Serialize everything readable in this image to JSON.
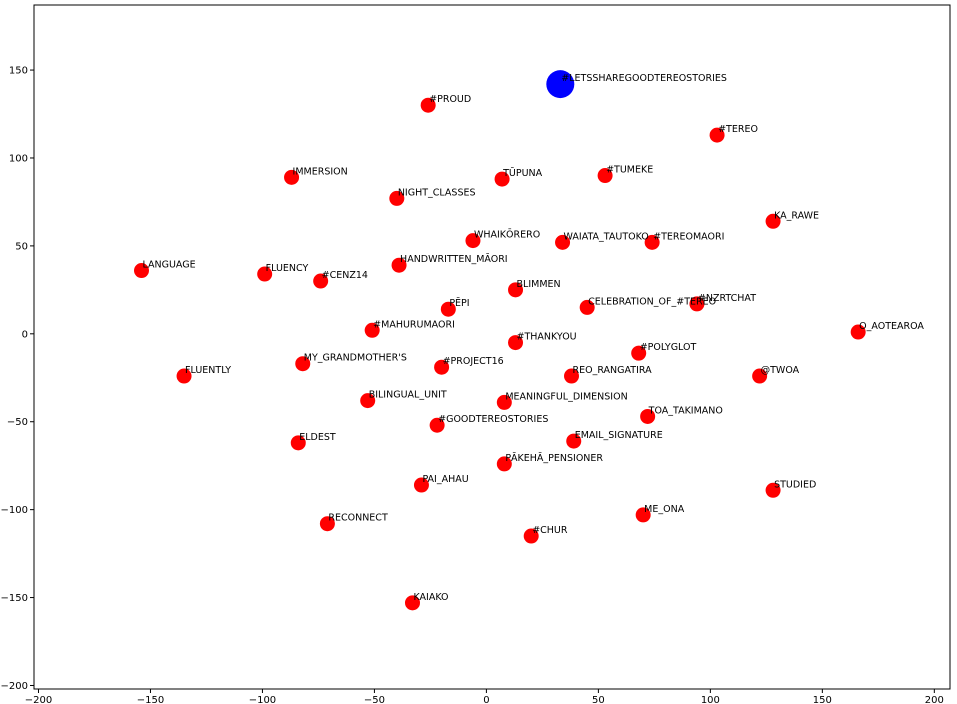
{
  "chart_data": {
    "type": "scatter",
    "title": "",
    "xlabel": "",
    "ylabel": "",
    "xlim": [
      -202,
      207
    ],
    "ylim": [
      -202,
      187
    ],
    "xticks": [
      -200,
      -150,
      -100,
      -50,
      0,
      50,
      100,
      150,
      200
    ],
    "yticks": [
      -200,
      -150,
      -100,
      -50,
      0,
      50,
      100,
      150
    ],
    "xtick_labels": [
      "−200",
      "−150",
      "−100",
      "−50",
      "0",
      "50",
      "100",
      "150",
      "200"
    ],
    "ytick_labels": [
      "−200",
      "−150",
      "−100",
      "−50",
      "0",
      "50",
      "100",
      "150"
    ],
    "grid": false,
    "colors": {
      "point": "#ff0000",
      "highlight": "#0000ff"
    },
    "series": [
      {
        "points": [
          {
            "label": "#PROUD",
            "x": -26,
            "y": 130
          },
          {
            "label": "#TEREO",
            "x": 103,
            "y": 113
          },
          {
            "label": "IMMERSION",
            "x": -87,
            "y": 89
          },
          {
            "label": "TŪPUNA",
            "x": 7,
            "y": 88
          },
          {
            "label": "#TUMEKE",
            "x": 53,
            "y": 90
          },
          {
            "label": "NIGHT_CLASSES",
            "x": -40,
            "y": 77
          },
          {
            "label": "KA_RAWE",
            "x": 128,
            "y": 64
          },
          {
            "label": "WHAIKŌRERO",
            "x": -6,
            "y": 53
          },
          {
            "label": "WAIATA_TAUTOKO",
            "x": 34,
            "y": 52
          },
          {
            "label": "#TEREOMAORI",
            "x": 74,
            "y": 52
          },
          {
            "label": "LANGUAGE",
            "x": -154,
            "y": 36
          },
          {
            "label": "FLUENCY",
            "x": -99,
            "y": 34
          },
          {
            "label": "#CENZ14",
            "x": -74,
            "y": 30
          },
          {
            "label": "HANDWRITTEN_MĀORI",
            "x": -39,
            "y": 39
          },
          {
            "label": "BLIMMEN",
            "x": 13,
            "y": 25
          },
          {
            "label": "PĒPI",
            "x": -17,
            "y": 14
          },
          {
            "label": "CELEBRATION_OF_#TEREO",
            "x": 45,
            "y": 15
          },
          {
            "label": "#NZRTCHAT",
            "x": 94,
            "y": 17
          },
          {
            "label": "#MAHURUMAORI",
            "x": -51,
            "y": 2
          },
          {
            "label": "O_AOTEAROA",
            "x": 166,
            "y": 1
          },
          {
            "label": "#THANKYOU",
            "x": 13,
            "y": -5
          },
          {
            "label": "#POLYGLOT",
            "x": 68,
            "y": -11
          },
          {
            "label": "FLUENTLY",
            "x": -135,
            "y": -24
          },
          {
            "label": "MY_GRANDMOTHER'S",
            "x": -82,
            "y": -17
          },
          {
            "label": "#PROJECT16",
            "x": -20,
            "y": -19
          },
          {
            "label": "REO_RANGATIRA",
            "x": 38,
            "y": -24
          },
          {
            "label": "@TWOA",
            "x": 122,
            "y": -24
          },
          {
            "label": "BILINGUAL_UNIT",
            "x": -53,
            "y": -38
          },
          {
            "label": "MEANINGFUL_DIMENSION",
            "x": 8,
            "y": -39
          },
          {
            "label": "TOA_TAKIMANO",
            "x": 72,
            "y": -47
          },
          {
            "label": "#GOODTEREOSTORIES",
            "x": -22,
            "y": -52
          },
          {
            "label": "ELDEST",
            "x": -84,
            "y": -62
          },
          {
            "label": "EMAIL_SIGNATURE",
            "x": 39,
            "y": -61
          },
          {
            "label": "PĀKEHĀ_PENSIONER",
            "x": 8,
            "y": -74
          },
          {
            "label": "PAI_AHAU",
            "x": -29,
            "y": -86
          },
          {
            "label": "STUDIED",
            "x": 128,
            "y": -89
          },
          {
            "label": "RECONNECT",
            "x": -71,
            "y": -108
          },
          {
            "label": "ME_ONA",
            "x": 70,
            "y": -103
          },
          {
            "label": "#CHUR",
            "x": 20,
            "y": -115
          },
          {
            "label": "KAIAKO",
            "x": -33,
            "y": -153
          }
        ]
      },
      {
        "highlight": true,
        "points": [
          {
            "label": "#LETSSHAREGOODTEREOSTORIES",
            "x": 33,
            "y": 142
          }
        ]
      }
    ]
  }
}
